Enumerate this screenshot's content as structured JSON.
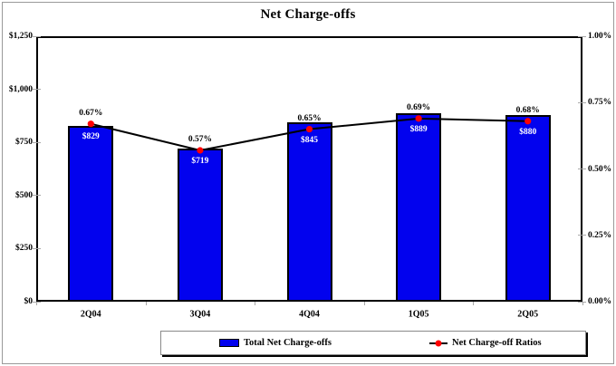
{
  "chart_data": {
    "type": "bar",
    "subtype": "bar-line-combo",
    "title": "Net Charge-offs",
    "categories": [
      "2Q04",
      "3Q04",
      "4Q04",
      "1Q05",
      "2Q05"
    ],
    "series": [
      {
        "name": "Total Net Charge-offs",
        "type": "bar",
        "axis": "left",
        "values": [
          829,
          719,
          845,
          889,
          880
        ],
        "labels": [
          "$829",
          "$719",
          "$845",
          "$889",
          "$880"
        ]
      },
      {
        "name": "Net Charge-off Ratios",
        "type": "line",
        "axis": "right",
        "values": [
          0.67,
          0.57,
          0.65,
          0.69,
          0.68
        ],
        "labels": [
          "0.67%",
          "0.57%",
          "0.65%",
          "0.69%",
          "0.68%"
        ]
      }
    ],
    "left_axis": {
      "min": 0,
      "max": 1250,
      "tick_labels": [
        "$1,250",
        "$1,000",
        "$750",
        "$500",
        "$250",
        "$0"
      ],
      "tick_values": [
        1250,
        1000,
        750,
        500,
        250,
        0
      ]
    },
    "right_axis": {
      "min": 0,
      "max": 1.0,
      "tick_labels": [
        "1.00%",
        "0.75%",
        "0.50%",
        "0.25%",
        "0.00%"
      ],
      "tick_values": [
        1.0,
        0.75,
        0.5,
        0.25,
        0.0
      ]
    },
    "grid": "off",
    "legend_position": "bottom",
    "colors": {
      "bar_fill": "#0202ee",
      "bar_border": "#000000",
      "bar_label_text": "#ffffff",
      "line": "#000000",
      "marker": "#ff0000",
      "axis": "#000000"
    }
  }
}
